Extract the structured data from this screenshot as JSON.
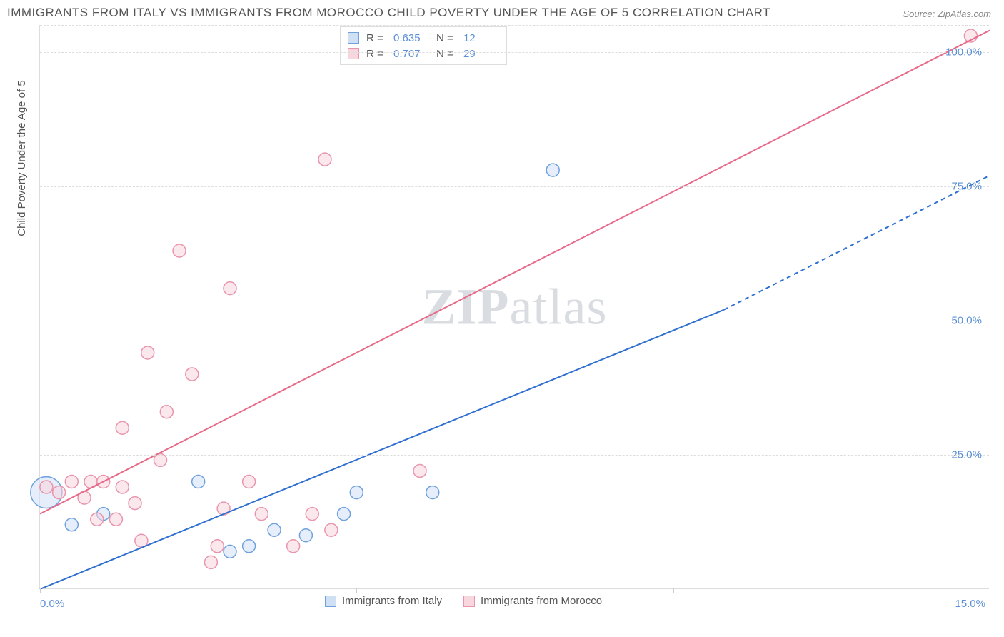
{
  "title": "IMMIGRANTS FROM ITALY VS IMMIGRANTS FROM MOROCCO CHILD POVERTY UNDER THE AGE OF 5 CORRELATION CHART",
  "source": "Source: ZipAtlas.com",
  "y_axis_title": "Child Poverty Under the Age of 5",
  "watermark_bold": "ZIP",
  "watermark_rest": "atlas",
  "chart": {
    "type": "scatter",
    "xlim": [
      0,
      15
    ],
    "ylim": [
      0,
      105
    ],
    "x_ticks": [
      0,
      5,
      10,
      15
    ],
    "x_tick_labels": [
      "0.0%",
      "",
      "",
      "15.0%"
    ],
    "y_ticks": [
      25,
      50,
      75,
      100
    ],
    "y_tick_labels": [
      "25.0%",
      "50.0%",
      "75.0%",
      "100.0%"
    ],
    "grid_color": "#dddddd",
    "background_color": "#ffffff",
    "series": [
      {
        "name": "Immigrants from Italy",
        "color_fill": "#cfe0f5",
        "color_stroke": "#6fa1dd",
        "line_color": "#2f6fd0",
        "marker_radius": 9,
        "trend": {
          "x1": 0,
          "y1": 0,
          "x2_solid": 10.8,
          "y2_solid": 52,
          "x2_dash": 15,
          "y2_dash": 77
        },
        "R": "0.635",
        "N": "12",
        "points": [
          {
            "x": 0.1,
            "y": 18,
            "r": 22
          },
          {
            "x": 0.5,
            "y": 12,
            "r": 9
          },
          {
            "x": 1.0,
            "y": 14,
            "r": 9
          },
          {
            "x": 2.5,
            "y": 20,
            "r": 9
          },
          {
            "x": 3.0,
            "y": 7,
            "r": 9
          },
          {
            "x": 3.3,
            "y": 8,
            "r": 9
          },
          {
            "x": 3.7,
            "y": 11,
            "r": 9
          },
          {
            "x": 4.2,
            "y": 10,
            "r": 9
          },
          {
            "x": 4.8,
            "y": 14,
            "r": 9
          },
          {
            "x": 5.0,
            "y": 18,
            "r": 9
          },
          {
            "x": 6.2,
            "y": 18,
            "r": 9
          },
          {
            "x": 8.1,
            "y": 78,
            "r": 9
          }
        ]
      },
      {
        "name": "Immigrants from Morocco",
        "color_fill": "#f7d6de",
        "color_stroke": "#e995ab",
        "line_color": "#e86a8a",
        "marker_radius": 9,
        "trend": {
          "x1": 0,
          "y1": 14,
          "x2_solid": 15,
          "y2_solid": 104,
          "x2_dash": 15,
          "y2_dash": 104
        },
        "R": "0.707",
        "N": "29",
        "points": [
          {
            "x": 0.1,
            "y": 19,
            "r": 9
          },
          {
            "x": 0.3,
            "y": 18,
            "r": 9
          },
          {
            "x": 0.5,
            "y": 20,
            "r": 9
          },
          {
            "x": 0.7,
            "y": 17,
            "r": 9
          },
          {
            "x": 0.8,
            "y": 20,
            "r": 9
          },
          {
            "x": 0.9,
            "y": 13,
            "r": 9
          },
          {
            "x": 1.0,
            "y": 20,
            "r": 9
          },
          {
            "x": 1.2,
            "y": 13,
            "r": 9
          },
          {
            "x": 1.3,
            "y": 19,
            "r": 9
          },
          {
            "x": 1.3,
            "y": 30,
            "r": 9
          },
          {
            "x": 1.5,
            "y": 16,
            "r": 9
          },
          {
            "x": 1.6,
            "y": 9,
            "r": 9
          },
          {
            "x": 1.7,
            "y": 44,
            "r": 9
          },
          {
            "x": 1.9,
            "y": 24,
            "r": 9
          },
          {
            "x": 2.0,
            "y": 33,
            "r": 9
          },
          {
            "x": 2.2,
            "y": 63,
            "r": 9
          },
          {
            "x": 2.4,
            "y": 40,
            "r": 9
          },
          {
            "x": 2.7,
            "y": 5,
            "r": 9
          },
          {
            "x": 2.8,
            "y": 8,
            "r": 9
          },
          {
            "x": 2.9,
            "y": 15,
            "r": 9
          },
          {
            "x": 3.0,
            "y": 56,
            "r": 9
          },
          {
            "x": 3.3,
            "y": 20,
            "r": 9
          },
          {
            "x": 3.5,
            "y": 14,
            "r": 9
          },
          {
            "x": 4.0,
            "y": 8,
            "r": 9
          },
          {
            "x": 4.3,
            "y": 14,
            "r": 9
          },
          {
            "x": 4.5,
            "y": 80,
            "r": 9
          },
          {
            "x": 4.6,
            "y": 11,
            "r": 9
          },
          {
            "x": 6.0,
            "y": 22,
            "r": 9
          },
          {
            "x": 14.7,
            "y": 103,
            "r": 9
          }
        ]
      }
    ]
  },
  "legend_top_labels": {
    "R": "R =",
    "N": "N ="
  },
  "legend_bottom": [
    {
      "label": "Immigrants from Italy",
      "fill": "#cfe0f5",
      "stroke": "#6fa1dd"
    },
    {
      "label": "Immigrants from Morocco",
      "fill": "#f7d6de",
      "stroke": "#e995ab"
    }
  ]
}
